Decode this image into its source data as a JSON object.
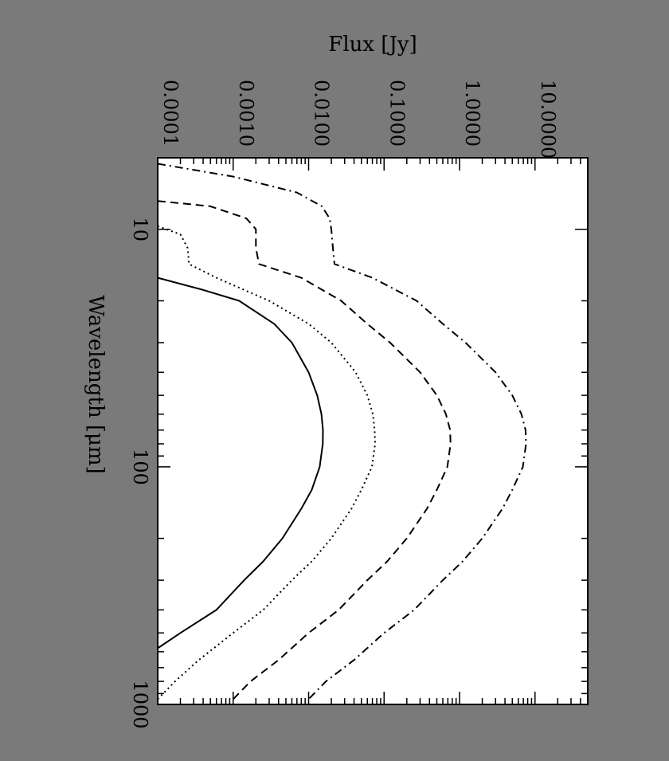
{
  "colors": {
    "background": "#7a7a7a",
    "plot_background": "#ffffff",
    "ink": "#000000"
  },
  "chart_data": {
    "type": "line",
    "orientation": "rotated 90 degrees clockwise",
    "xlabel": "Wavelength [μm]",
    "ylabel": "Flux [Jy]",
    "xscale": "log",
    "yscale": "log",
    "xlim": [
      5,
      1000
    ],
    "ylim": [
      0.0001,
      50
    ],
    "x_ticks": [
      "10",
      "100",
      "1000"
    ],
    "y_ticks": [
      "0.0001",
      "0.0010",
      "0.0100",
      "0.1000",
      "1.0000",
      "10.0000"
    ],
    "series": [
      {
        "style": "solid",
        "points": [
          [
            16,
            0.0001
          ],
          [
            18,
            0.0004
          ],
          [
            20,
            0.0012
          ],
          [
            25,
            0.0035
          ],
          [
            30,
            0.006
          ],
          [
            40,
            0.01
          ],
          [
            50,
            0.013
          ],
          [
            60,
            0.0148
          ],
          [
            70,
            0.0155
          ],
          [
            80,
            0.0154
          ],
          [
            100,
            0.014
          ],
          [
            125,
            0.011
          ],
          [
            150,
            0.008
          ],
          [
            200,
            0.0045
          ],
          [
            250,
            0.0025
          ],
          [
            300,
            0.0014
          ],
          [
            400,
            0.0006
          ],
          [
            500,
            0.0002
          ],
          [
            580,
            0.0001
          ]
        ]
      },
      {
        "style": "dotted",
        "points": [
          [
            9.7,
            0.0001
          ],
          [
            10.5,
            0.0002
          ],
          [
            12,
            0.00025
          ],
          [
            14,
            0.00026
          ],
          [
            16,
            0.0006
          ],
          [
            20,
            0.003
          ],
          [
            25,
            0.01
          ],
          [
            30,
            0.02
          ],
          [
            40,
            0.042
          ],
          [
            50,
            0.06
          ],
          [
            60,
            0.071
          ],
          [
            70,
            0.075
          ],
          [
            80,
            0.076
          ],
          [
            100,
            0.069
          ],
          [
            125,
            0.05
          ],
          [
            150,
            0.037
          ],
          [
            200,
            0.02
          ],
          [
            250,
            0.011
          ],
          [
            300,
            0.006
          ],
          [
            400,
            0.0025
          ],
          [
            500,
            0.001
          ],
          [
            650,
            0.00035
          ],
          [
            800,
            0.00017
          ],
          [
            950,
            0.0001
          ]
        ]
      },
      {
        "style": "dashed",
        "points": [
          [
            7.6,
            0.0001
          ],
          [
            8,
            0.0005
          ],
          [
            9,
            0.0015
          ],
          [
            10,
            0.002
          ],
          [
            11,
            0.002
          ],
          [
            12,
            0.002
          ],
          [
            14,
            0.0022
          ],
          [
            16,
            0.008
          ],
          [
            20,
            0.027
          ],
          [
            25,
            0.06
          ],
          [
            30,
            0.12
          ],
          [
            40,
            0.3
          ],
          [
            50,
            0.5
          ],
          [
            60,
            0.66
          ],
          [
            70,
            0.75
          ],
          [
            80,
            0.76
          ],
          [
            100,
            0.69
          ],
          [
            125,
            0.5
          ],
          [
            150,
            0.37
          ],
          [
            200,
            0.2
          ],
          [
            250,
            0.11
          ],
          [
            300,
            0.06
          ],
          [
            400,
            0.025
          ],
          [
            500,
            0.01
          ],
          [
            650,
            0.004
          ],
          [
            800,
            0.0017
          ],
          [
            950,
            0.001
          ]
        ]
      },
      {
        "style": "dash-dot",
        "points": [
          [
            5.3,
            0.0001
          ],
          [
            6,
            0.001
          ],
          [
            7,
            0.007
          ],
          [
            8,
            0.015
          ],
          [
            9,
            0.019
          ],
          [
            10,
            0.02
          ],
          [
            12,
            0.021
          ],
          [
            14,
            0.022
          ],
          [
            16,
            0.07
          ],
          [
            20,
            0.27
          ],
          [
            25,
            0.6
          ],
          [
            30,
            1.2
          ],
          [
            40,
            3.0
          ],
          [
            50,
            5.0
          ],
          [
            60,
            6.6
          ],
          [
            70,
            7.5
          ],
          [
            80,
            7.6
          ],
          [
            100,
            6.9
          ],
          [
            125,
            5.0
          ],
          [
            150,
            3.7
          ],
          [
            200,
            2.0
          ],
          [
            250,
            1.1
          ],
          [
            300,
            0.6
          ],
          [
            400,
            0.25
          ],
          [
            500,
            0.1
          ],
          [
            650,
            0.04
          ],
          [
            800,
            0.017
          ],
          [
            950,
            0.01
          ]
        ]
      }
    ]
  }
}
